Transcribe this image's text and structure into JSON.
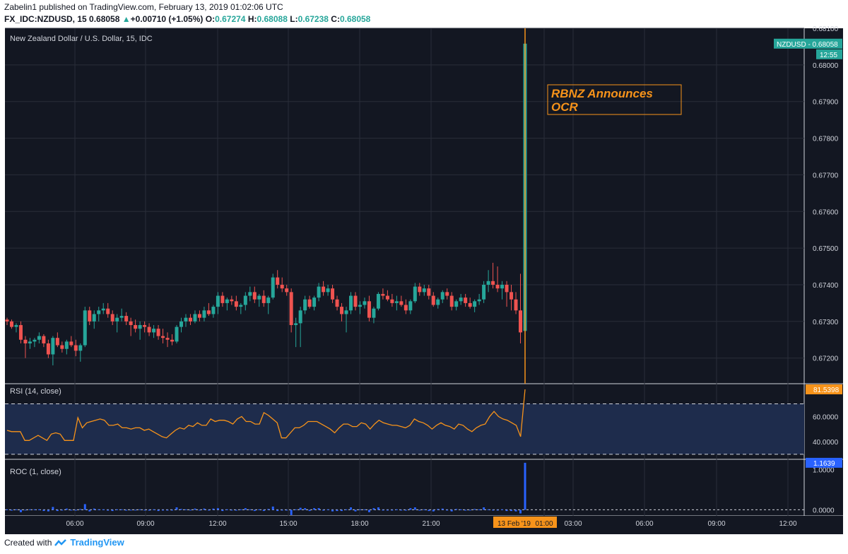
{
  "header": {
    "line1": "Zabelin1 published on TradingView.com, February 13, 2019 01:02:06 UTC",
    "symbol": "FX_IDC:NZDUSD, 15",
    "last": "0.68058",
    "change_arrow": "▲",
    "change": "+0.00710 (+1.05%)",
    "o_label": "O:",
    "o": "0.67274",
    "h_label": "H:",
    "h": "0.68088",
    "l_label": "L:",
    "l": "0.67238",
    "c_label": "C:",
    "c": "0.68058"
  },
  "footer": {
    "created_with": "Created with",
    "brand": "TradingView"
  },
  "colors": {
    "background": "#131722",
    "grid": "#2a2e39",
    "up": "#26a69a",
    "down": "#ef5350",
    "rsi_line": "#f7931a",
    "rsi_band": "#1e2c4c",
    "roc_bar": "#2962ff",
    "annotation": "#f7931a",
    "axis_text": "#d1d4dc"
  },
  "chart_data": {
    "type": "candlestick",
    "title": "New Zealand Dollar / U.S. Dollar, 15, IDC",
    "price_axis": {
      "ticks": [
        "0.68100",
        "0.68000",
        "0.67900",
        "0.67800",
        "0.67700",
        "0.67600",
        "0.67500",
        "0.67400",
        "0.67300",
        "0.67200"
      ],
      "ylim": [
        0.6713,
        0.681
      ]
    },
    "time_axis": {
      "ticks": [
        "06:00",
        "09:00",
        "12:00",
        "15:00",
        "18:00",
        "21:00",
        "01:00",
        "03:00",
        "06:00",
        "09:00",
        "12:00"
      ],
      "date_label": "13 Feb '19"
    },
    "last_price_label": "NZDUSD - 0.68058",
    "countdown_label": "12:55",
    "annotation": "RBNZ Announces OCR",
    "candles": [
      [
        0.67305,
        0.6731,
        0.6729,
        0.673
      ],
      [
        0.673,
        0.67305,
        0.6728,
        0.67285
      ],
      [
        0.67285,
        0.67295,
        0.6727,
        0.6729
      ],
      [
        0.6729,
        0.673,
        0.6724,
        0.6725
      ],
      [
        0.6725,
        0.6726,
        0.672,
        0.6724
      ],
      [
        0.6724,
        0.67255,
        0.67225,
        0.67245
      ],
      [
        0.67245,
        0.67255,
        0.6723,
        0.6725
      ],
      [
        0.6725,
        0.6727,
        0.6724,
        0.6726
      ],
      [
        0.6726,
        0.67265,
        0.6723,
        0.6724
      ],
      [
        0.6724,
        0.6725,
        0.672,
        0.6721
      ],
      [
        0.6721,
        0.6726,
        0.6718,
        0.67255
      ],
      [
        0.67255,
        0.6727,
        0.6723,
        0.67235
      ],
      [
        0.67235,
        0.67245,
        0.67215,
        0.67225
      ],
      [
        0.67225,
        0.6725,
        0.6721,
        0.67245
      ],
      [
        0.67245,
        0.6726,
        0.6723,
        0.67235
      ],
      [
        0.67235,
        0.6725,
        0.67205,
        0.6722
      ],
      [
        0.6722,
        0.6724,
        0.6719,
        0.67235
      ],
      [
        0.67235,
        0.6734,
        0.6723,
        0.6733
      ],
      [
        0.6733,
        0.6734,
        0.6729,
        0.673
      ],
      [
        0.673,
        0.6733,
        0.6728,
        0.6732
      ],
      [
        0.6732,
        0.6734,
        0.673,
        0.6733
      ],
      [
        0.6733,
        0.6735,
        0.6732,
        0.67335
      ],
      [
        0.67335,
        0.6735,
        0.6731,
        0.6732
      ],
      [
        0.6732,
        0.6733,
        0.6729,
        0.673
      ],
      [
        0.673,
        0.6732,
        0.6727,
        0.6731
      ],
      [
        0.6731,
        0.67335,
        0.673,
        0.67315
      ],
      [
        0.67315,
        0.67325,
        0.6729,
        0.673
      ],
      [
        0.673,
        0.6731,
        0.6726,
        0.6729
      ],
      [
        0.6729,
        0.67305,
        0.6727,
        0.6728
      ],
      [
        0.6728,
        0.673,
        0.6725,
        0.6729
      ],
      [
        0.6729,
        0.673,
        0.6727,
        0.67285
      ],
      [
        0.67285,
        0.67295,
        0.6726,
        0.6727
      ],
      [
        0.6727,
        0.6729,
        0.67255,
        0.6728
      ],
      [
        0.6728,
        0.6729,
        0.6725,
        0.6726
      ],
      [
        0.6726,
        0.6728,
        0.6724,
        0.67255
      ],
      [
        0.67255,
        0.6727,
        0.6723,
        0.6725
      ],
      [
        0.6725,
        0.67265,
        0.67235,
        0.67245
      ],
      [
        0.67245,
        0.6729,
        0.6724,
        0.67285
      ],
      [
        0.67285,
        0.6731,
        0.6727,
        0.673
      ],
      [
        0.673,
        0.6732,
        0.67285,
        0.6731
      ],
      [
        0.6731,
        0.6732,
        0.6729,
        0.673
      ],
      [
        0.673,
        0.6733,
        0.67295,
        0.6732
      ],
      [
        0.6732,
        0.6733,
        0.673,
        0.6731
      ],
      [
        0.6731,
        0.6734,
        0.673,
        0.6733
      ],
      [
        0.6733,
        0.6735,
        0.67315,
        0.6732
      ],
      [
        0.6732,
        0.67345,
        0.6731,
        0.6734
      ],
      [
        0.6734,
        0.6738,
        0.6732,
        0.6737
      ],
      [
        0.6737,
        0.6738,
        0.6734,
        0.6735
      ],
      [
        0.6735,
        0.67365,
        0.6733,
        0.6736
      ],
      [
        0.6736,
        0.6737,
        0.67345,
        0.67355
      ],
      [
        0.67355,
        0.6737,
        0.6733,
        0.6734
      ],
      [
        0.6734,
        0.6735,
        0.6732,
        0.67345
      ],
      [
        0.67345,
        0.6738,
        0.6733,
        0.6737
      ],
      [
        0.6737,
        0.67395,
        0.67355,
        0.6738
      ],
      [
        0.6738,
        0.67395,
        0.6735,
        0.6736
      ],
      [
        0.6736,
        0.67375,
        0.6734,
        0.6737
      ],
      [
        0.6737,
        0.67385,
        0.6734,
        0.6735
      ],
      [
        0.6735,
        0.6737,
        0.6732,
        0.67365
      ],
      [
        0.67365,
        0.6743,
        0.6736,
        0.6742
      ],
      [
        0.6742,
        0.6744,
        0.6739,
        0.674
      ],
      [
        0.674,
        0.6742,
        0.6738,
        0.6739
      ],
      [
        0.6739,
        0.674,
        0.6737,
        0.6738
      ],
      [
        0.6738,
        0.6739,
        0.6727,
        0.6729
      ],
      [
        0.6729,
        0.6731,
        0.6723,
        0.67295
      ],
      [
        0.67295,
        0.6734,
        0.6723,
        0.6733
      ],
      [
        0.6733,
        0.6737,
        0.6732,
        0.6736
      ],
      [
        0.6736,
        0.6737,
        0.67335,
        0.6734
      ],
      [
        0.6734,
        0.6737,
        0.6733,
        0.67365
      ],
      [
        0.67365,
        0.67405,
        0.67355,
        0.67395
      ],
      [
        0.67395,
        0.6741,
        0.6737,
        0.6738
      ],
      [
        0.6738,
        0.674,
        0.6737,
        0.6739
      ],
      [
        0.6739,
        0.674,
        0.6735,
        0.6736
      ],
      [
        0.6736,
        0.6737,
        0.6733,
        0.6734
      ],
      [
        0.6734,
        0.6735,
        0.673,
        0.6732
      ],
      [
        0.6732,
        0.6734,
        0.6727,
        0.6733
      ],
      [
        0.6733,
        0.6738,
        0.6732,
        0.6737
      ],
      [
        0.6737,
        0.6738,
        0.6733,
        0.6734
      ],
      [
        0.6734,
        0.67355,
        0.6732,
        0.67345
      ],
      [
        0.67345,
        0.67365,
        0.67335,
        0.67355
      ],
      [
        0.67355,
        0.6737,
        0.673,
        0.6731
      ],
      [
        0.6731,
        0.6734,
        0.67295,
        0.67335
      ],
      [
        0.67335,
        0.6738,
        0.6733,
        0.67375
      ],
      [
        0.67375,
        0.6739,
        0.6736,
        0.6737
      ],
      [
        0.6737,
        0.67385,
        0.67355,
        0.6736
      ],
      [
        0.6736,
        0.67375,
        0.6734,
        0.6735
      ],
      [
        0.6735,
        0.6737,
        0.6733,
        0.67355
      ],
      [
        0.67355,
        0.6737,
        0.6734,
        0.67345
      ],
      [
        0.67345,
        0.6736,
        0.6732,
        0.6733
      ],
      [
        0.6733,
        0.6736,
        0.6732,
        0.67355
      ],
      [
        0.67355,
        0.67405,
        0.6735,
        0.67395
      ],
      [
        0.67395,
        0.67405,
        0.6737,
        0.6738
      ],
      [
        0.6738,
        0.674,
        0.6737,
        0.6739
      ],
      [
        0.6739,
        0.674,
        0.6736,
        0.6737
      ],
      [
        0.6737,
        0.6738,
        0.6734,
        0.67345
      ],
      [
        0.67345,
        0.67365,
        0.67335,
        0.6736
      ],
      [
        0.6736,
        0.67385,
        0.6735,
        0.6738
      ],
      [
        0.6738,
        0.6739,
        0.6736,
        0.6737
      ],
      [
        0.6737,
        0.6738,
        0.6733,
        0.6734
      ],
      [
        0.6734,
        0.6736,
        0.6733,
        0.67355
      ],
      [
        0.67355,
        0.67375,
        0.67345,
        0.67365
      ],
      [
        0.67365,
        0.67375,
        0.6734,
        0.6735
      ],
      [
        0.6735,
        0.67365,
        0.67335,
        0.6734
      ],
      [
        0.6734,
        0.6736,
        0.67325,
        0.67355
      ],
      [
        0.67355,
        0.67375,
        0.67345,
        0.6736
      ],
      [
        0.6736,
        0.6741,
        0.6735,
        0.674
      ],
      [
        0.674,
        0.6744,
        0.6738,
        0.6741
      ],
      [
        0.6741,
        0.6746,
        0.6739,
        0.674
      ],
      [
        0.674,
        0.6745,
        0.6738,
        0.6739
      ],
      [
        0.6739,
        0.6741,
        0.6736,
        0.674
      ],
      [
        0.674,
        0.6741,
        0.6734,
        0.6738
      ],
      [
        0.6738,
        0.674,
        0.6733,
        0.6736
      ],
      [
        0.6736,
        0.6738,
        0.6732,
        0.6733
      ],
      [
        0.6733,
        0.6743,
        0.6724,
        0.6727
      ],
      [
        0.67274,
        0.68088,
        0.67238,
        0.68058
      ]
    ],
    "indicators": [
      {
        "name": "RSI (14, close)",
        "type": "line",
        "ylim": [
          26,
          86
        ],
        "ticks": [
          "60.0000",
          "40.0000"
        ],
        "band": [
          30,
          70
        ],
        "last_label": "81.5398",
        "values": [
          49,
          48,
          48,
          48,
          41,
          41,
          43,
          45,
          43,
          41,
          46,
          47,
          46,
          41,
          41,
          41,
          59,
          51,
          55,
          56,
          57,
          58,
          57,
          53,
          53,
          54,
          51,
          51,
          50,
          51,
          51,
          49,
          50,
          48,
          46,
          44,
          43,
          46,
          49,
          51,
          50,
          53,
          52,
          55,
          53,
          53,
          58,
          56,
          57,
          57,
          56,
          54,
          58,
          60,
          56,
          56,
          54,
          54,
          63,
          61,
          58,
          55,
          43,
          43,
          47,
          51,
          51,
          53,
          56,
          56,
          56,
          54,
          52,
          50,
          47,
          51,
          54,
          54,
          52,
          52,
          55,
          54,
          50,
          54,
          57,
          55,
          54,
          53,
          53,
          52,
          51,
          53,
          58,
          56,
          55,
          53,
          50,
          53,
          55,
          53,
          52,
          50,
          54,
          53,
          50,
          48,
          51,
          53,
          54,
          60,
          64,
          60,
          58,
          57,
          55,
          53,
          44,
          81.5
        ]
      },
      {
        "name": "ROC (1, close)",
        "type": "histogram",
        "ylim": [
          -0.15,
          1.25
        ],
        "ticks": [
          "1.0000",
          "0.0000"
        ],
        "last_label": "1.1639",
        "values": [
          0.01,
          -0.02,
          0.01,
          -0.06,
          -0.01,
          0.01,
          0.01,
          0.01,
          -0.03,
          -0.04,
          0.07,
          -0.03,
          -0.01,
          0.03,
          -0.01,
          -0.02,
          0.02,
          0.14,
          -0.04,
          0.03,
          0.01,
          0.01,
          -0.02,
          -0.03,
          0.01,
          0.01,
          -0.02,
          -0.01,
          -0.01,
          0.01,
          -0.01,
          -0.02,
          0.01,
          -0.03,
          -0.01,
          -0.01,
          -0.01,
          0.06,
          0.02,
          0.01,
          -0.01,
          0.03,
          -0.01,
          0.03,
          -0.01,
          0.03,
          0.04,
          -0.03,
          0.01,
          -0.01,
          -0.02,
          0.01,
          0.04,
          0.01,
          -0.03,
          0.01,
          -0.03,
          0.02,
          0.08,
          -0.03,
          -0.01,
          -0.01,
          -0.13,
          0.01,
          0.05,
          0.04,
          -0.03,
          0.04,
          0.04,
          -0.02,
          0.01,
          -0.04,
          -0.03,
          -0.03,
          0.01,
          0.06,
          -0.04,
          0.01,
          0.01,
          -0.06,
          0.04,
          0.06,
          -0.01,
          -0.01,
          -0.01,
          0.01,
          -0.01,
          -0.02,
          0.04,
          0.06,
          -0.02,
          0.01,
          -0.03,
          -0.04,
          0.02,
          0.03,
          -0.01,
          -0.04,
          0.02,
          0.01,
          -0.02,
          -0.01,
          0.02,
          0.01,
          0.06,
          0.01,
          -0.01,
          -0.01,
          0.01,
          -0.03,
          -0.03,
          -0.04,
          -0.09,
          1.1639
        ]
      }
    ]
  }
}
